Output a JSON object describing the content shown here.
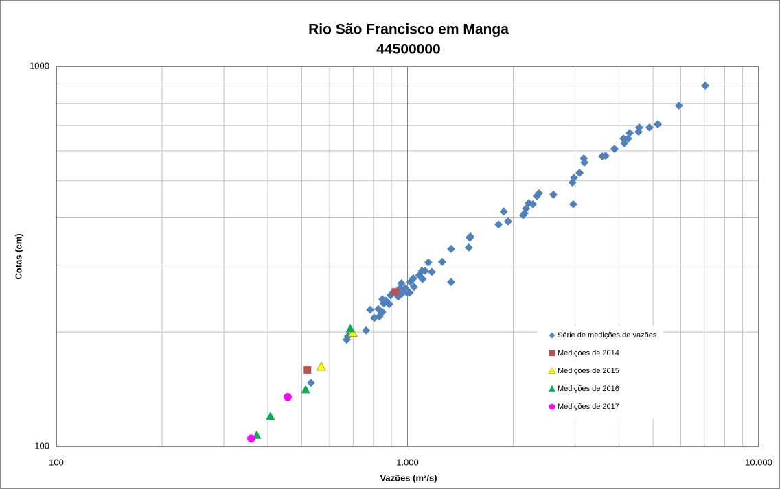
{
  "chart_data": {
    "type": "scatter",
    "title": "Rio São Francisco em Manga",
    "subtitle": "44500000",
    "x_label": "Vazões (m³/s)",
    "y_label": "Cotas (cm)",
    "xscale": "log",
    "yscale": "log",
    "xlim": [
      100,
      10000
    ],
    "ylim": [
      100,
      1000
    ],
    "xticks": [
      100,
      {
        "value": 1000,
        "label": "1.000"
      },
      {
        "value": 10000,
        "label": "10.000"
      }
    ],
    "yticks": [
      100,
      1000
    ],
    "grid": true,
    "legend": "right",
    "series": [
      {
        "name": "Série de medições de vazões",
        "color": "#4f81bd",
        "marker": "diamond",
        "x": [
          7040,
          5930,
          5160,
          4887,
          4570,
          4550,
          4290,
          4250,
          4120,
          4140,
          3885,
          3665,
          3585,
          3175,
          3190,
          3090,
          2980,
          2950,
          2965,
          2603,
          2368,
          2335,
          2275,
          2215,
          2175,
          2155,
          2135,
          1934,
          1880,
          1816,
          1510,
          1495,
          1505,
          1331,
          1255,
          1331,
          1173,
          1146,
          1122,
          1099,
          1104,
          1080,
          1039,
          1019,
          1044,
          985,
          961,
          952,
          994,
          1013,
          966,
          941,
          912,
          895,
          868,
          848,
          887,
          856,
          826,
          848,
          832,
          804,
          783,
          762,
          671,
          677,
          531
        ],
        "y": [
          890,
          789,
          705,
          691,
          691,
          673,
          668,
          646,
          646,
          628,
          607,
          582,
          580,
          573,
          559,
          525,
          510,
          495,
          434,
          460,
          464,
          456,
          434,
          437,
          423,
          411,
          406,
          391,
          415,
          384,
          357,
          334,
          354,
          331,
          306,
          271,
          288,
          305,
          290,
          290,
          276,
          282,
          277,
          271,
          263,
          261,
          269,
          261,
          255,
          254,
          253,
          248,
          255,
          250,
          242,
          244,
          237,
          238,
          230,
          226,
          220,
          218,
          229,
          202,
          191,
          195,
          147
        ]
      },
      {
        "name": "Medições de 2014",
        "color": "#c0504d",
        "marker": "square",
        "x": [
          924,
          519
        ],
        "y": [
          255,
          159
        ]
      },
      {
        "name": "Medições de 2015",
        "color": "#ffff00",
        "marker": "triangle",
        "x": [
          699,
          568
        ],
        "y": [
          199,
          162
        ]
      },
      {
        "name": "Medições de 2016",
        "color": "#00b050",
        "marker": "triangle",
        "x": [
          687,
          513,
          407,
          372
        ],
        "y": [
          204,
          141,
          120,
          107
        ]
      },
      {
        "name": "Medições de 2017",
        "color": "#ff00ff",
        "marker": "circle",
        "x": [
          456,
          359
        ],
        "y": [
          135,
          105
        ]
      }
    ]
  }
}
